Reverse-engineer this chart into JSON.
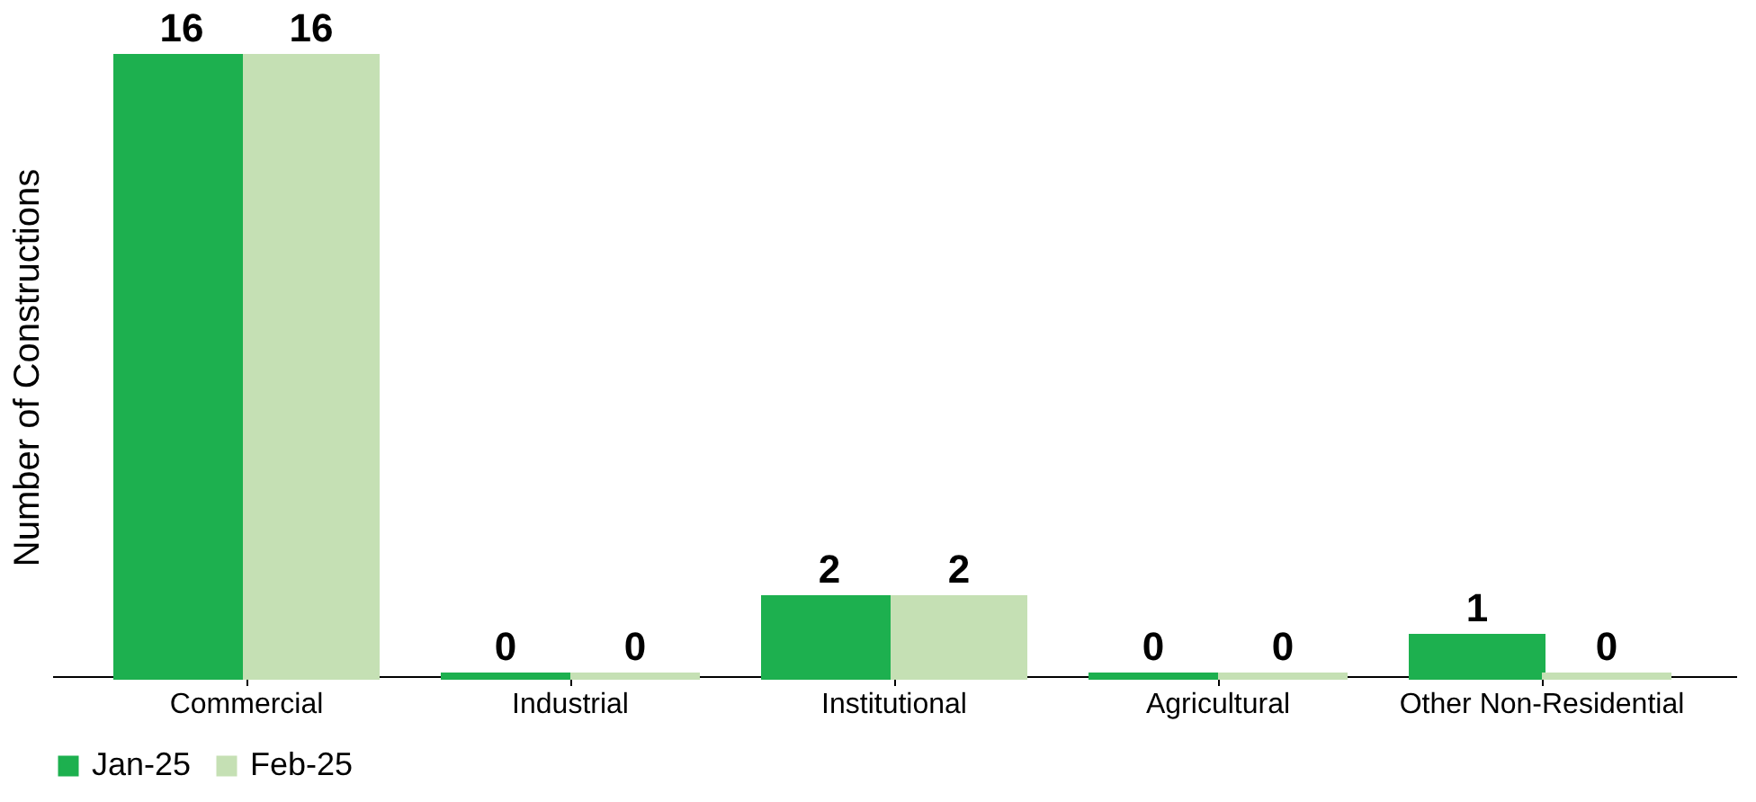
{
  "chart_data": {
    "type": "bar",
    "ylabel": "Number of Constructions",
    "categories": [
      "Commercial",
      "Industrial",
      "Institutional",
      "Agricultural",
      "Other Non-Residential"
    ],
    "series": [
      {
        "name": "Jan-25",
        "color": "#1db04f",
        "values": [
          16,
          0,
          2,
          0,
          1
        ]
      },
      {
        "name": "Feb-25",
        "color": "#c5e0b4",
        "values": [
          16,
          0,
          2,
          0,
          0
        ]
      }
    ],
    "data_labels": true,
    "legend": "bottom",
    "grid": false
  }
}
